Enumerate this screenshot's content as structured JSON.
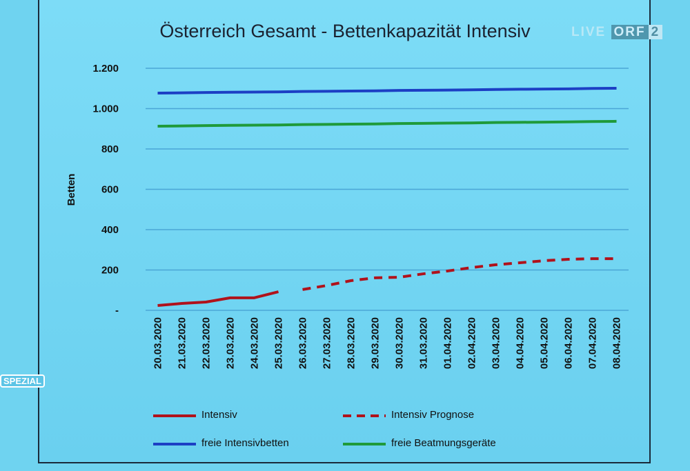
{
  "title": "Österreich Gesamt - Bettenkapazität Intensiv",
  "logo": {
    "live": "LIVE",
    "orf": "ORF",
    "channel": "2"
  },
  "badge": "SPEZIAL",
  "chart_data": {
    "type": "line",
    "title": "Österreich Gesamt - Bettenkapazität Intensiv",
    "ylabel": "Betten",
    "xlabel": "",
    "ylim": [
      0,
      1200
    ],
    "yticks": [
      "-",
      "200",
      "400",
      "600",
      "800",
      "1.000",
      "1.200"
    ],
    "grid": true,
    "legend_position": "bottom",
    "categories": [
      "20.03.2020",
      "21.03.2020",
      "22.03.2020",
      "23.03.2020",
      "24.03.2020",
      "25.03.2020",
      "26.03.2020",
      "27.03.2020",
      "28.03.2020",
      "29.03.2020",
      "30.03.2020",
      "31.03.2020",
      "01.04.2020",
      "02.04.2020",
      "03.04.2020",
      "04.04.2020",
      "05.04.2020",
      "06.04.2020",
      "07.04.2020",
      "08.04.2020"
    ],
    "series": [
      {
        "name": "Intensiv",
        "color": "#b0121b",
        "dash": false,
        "values": [
          24,
          34,
          41,
          62,
          62,
          92,
          null,
          null,
          null,
          null,
          null,
          null,
          null,
          null,
          null,
          null,
          null,
          null,
          null,
          null
        ]
      },
      {
        "name": "Intensiv Prognose",
        "color": "#b0121b",
        "dash": true,
        "values": [
          null,
          null,
          null,
          null,
          null,
          null,
          103,
          123,
          147,
          161,
          164,
          181,
          195,
          212,
          226,
          236,
          246,
          253,
          256,
          256
        ]
      },
      {
        "name": "freie Intensivbetten",
        "color": "#1c3fc4",
        "dash": false,
        "values": [
          1077,
          1078,
          1080,
          1081,
          1082,
          1083,
          1085,
          1086,
          1087,
          1088,
          1090,
          1091,
          1092,
          1093,
          1095,
          1096,
          1097,
          1098,
          1100,
          1101
        ]
      },
      {
        "name": "freie Beatmungsgeräte",
        "color": "#1f9a3a",
        "dash": false,
        "values": [
          913,
          914,
          916,
          917,
          918,
          919,
          921,
          922,
          923,
          924,
          926,
          927,
          928,
          929,
          931,
          932,
          933,
          934,
          936,
          937
        ]
      }
    ]
  }
}
